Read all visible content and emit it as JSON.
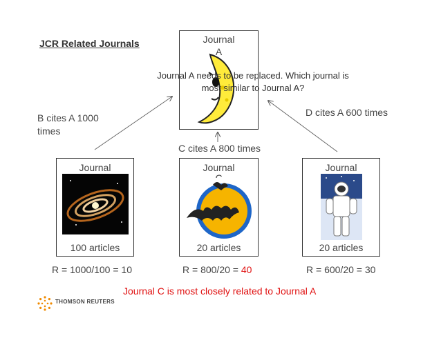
{
  "title": "JCR Related Journals",
  "journal_a": {
    "label": "Journal",
    "sublabel": "A"
  },
  "question": "Journal A needs to be replaced.  Which journal is most similar to Journal A?",
  "citations": {
    "b": "B cites A 1000 times",
    "c": "C cites A 800 times",
    "d": "D cites A 600 times"
  },
  "journals": [
    {
      "label": "Journal",
      "articles": "100 articles",
      "ratio_prefix": "R = 1000/100 = ",
      "ratio_value": "10"
    },
    {
      "label": "Journal",
      "sublabel_partial": "C",
      "articles": "20 articles",
      "ratio_prefix": "R = 800/20 = ",
      "ratio_value": "40"
    },
    {
      "label": "Journal",
      "articles": "20 articles",
      "ratio_prefix": "R = 600/20 = ",
      "ratio_value": "30"
    }
  ],
  "conclusion": "Journal C is most closely related to Journal A",
  "logo": {
    "text": "THOMSON REUTERS"
  },
  "colors": {
    "highlight": "#e01010",
    "text": "#444444"
  }
}
